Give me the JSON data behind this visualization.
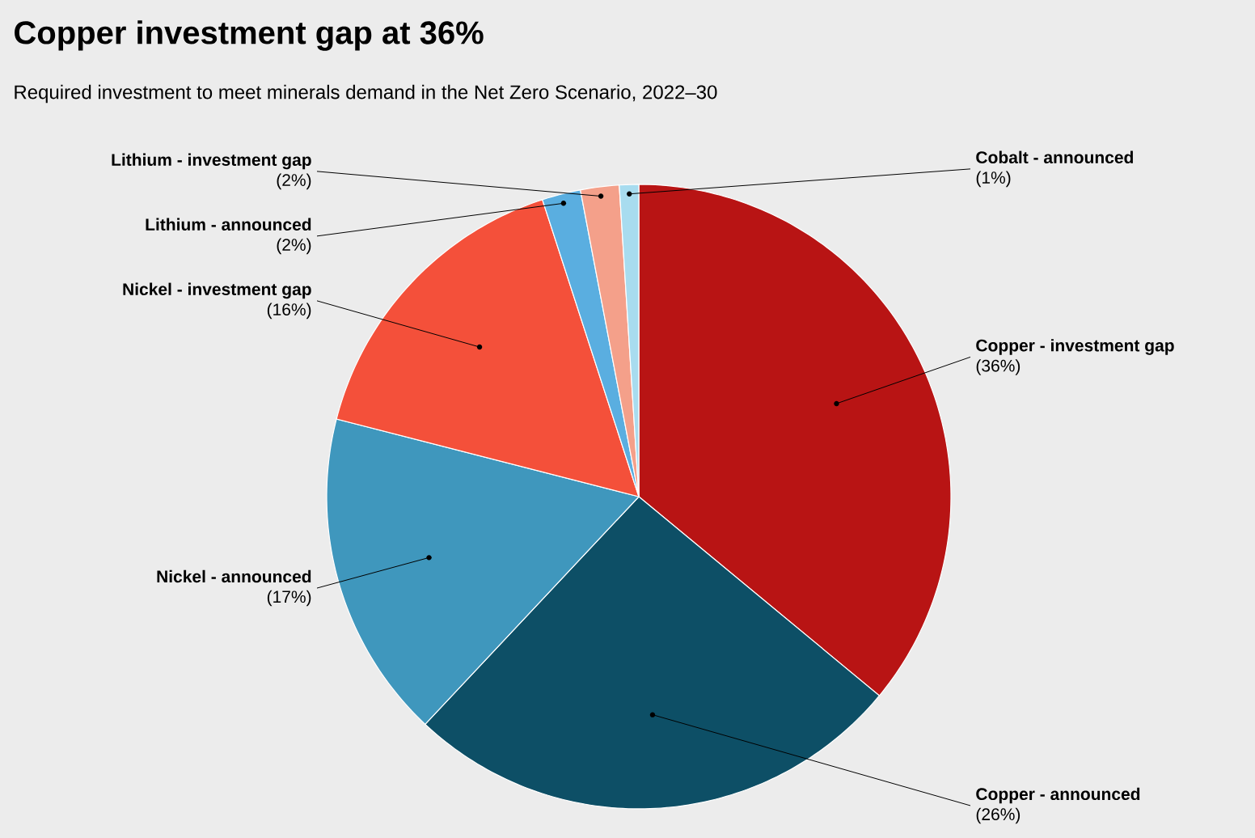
{
  "chart_data": {
    "type": "pie",
    "title": "Copper investment gap at 36%",
    "subtitle": "Required investment to meet minerals demand in the Net Zero Scenario, 2022–30",
    "categories": [
      "Copper - investment gap",
      "Copper - announced",
      "Nickel - announced",
      "Nickel - investment gap",
      "Lithium - announced",
      "Lithium - investment gap",
      "Cobalt - announced"
    ],
    "values": [
      36,
      26,
      17,
      16,
      2,
      2,
      1
    ],
    "value_labels": [
      "(36%)",
      "(26%)",
      "(17%)",
      "(16%)",
      "(2%)",
      "(2%)",
      "(1%)"
    ],
    "colors": [
      "#b81414",
      "#0d4f66",
      "#3f97bd",
      "#f4503a",
      "#5aaee0",
      "#f4a08a",
      "#a8dcef"
    ]
  }
}
